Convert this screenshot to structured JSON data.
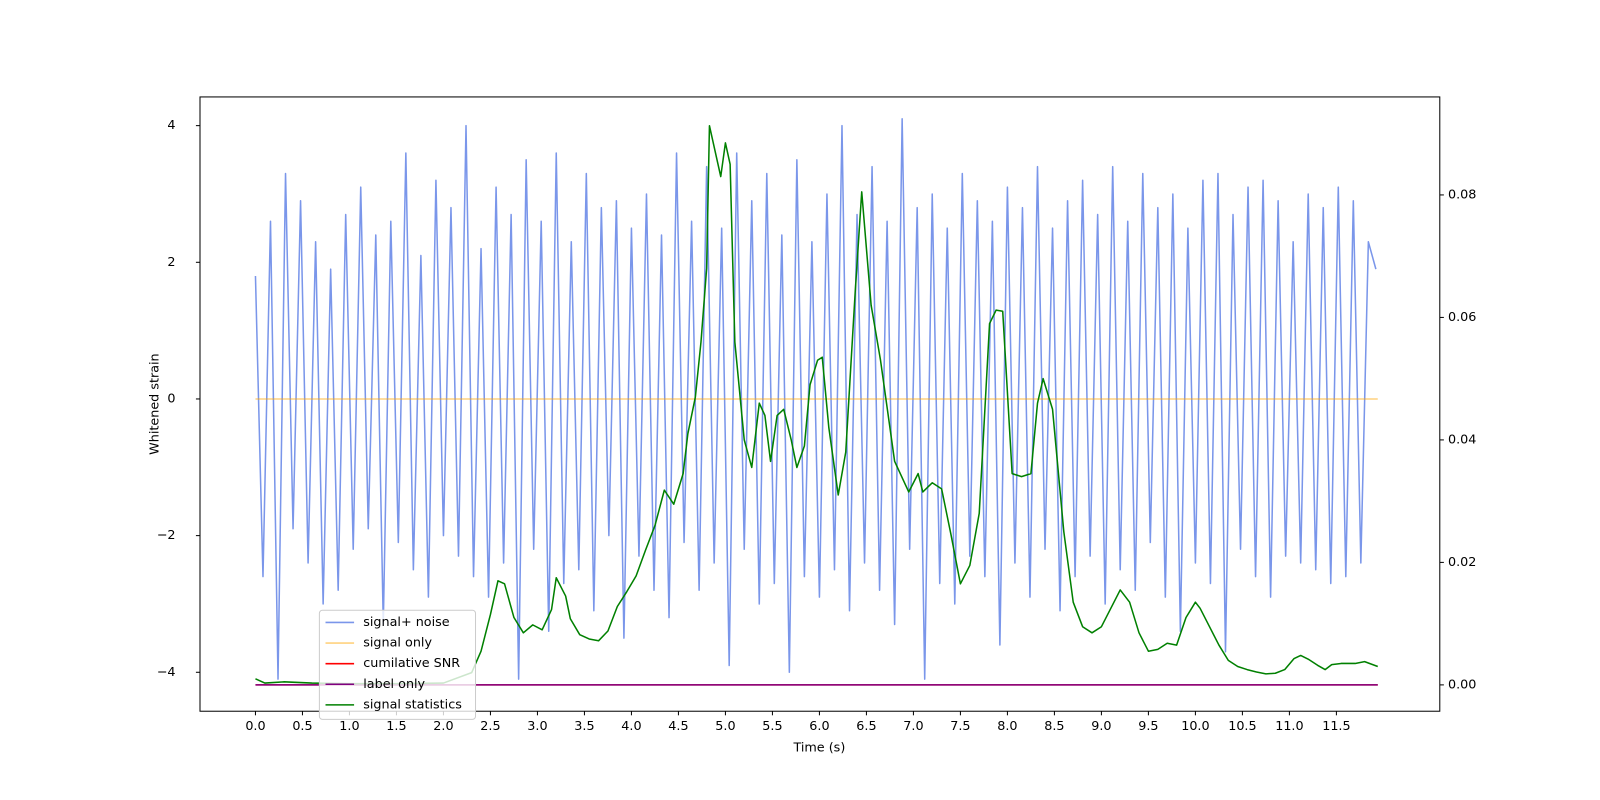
{
  "chart_data": {
    "type": "line",
    "xlabel": "Time (s)",
    "ylabel": "Whitened strain",
    "xlim": [
      -0.59,
      12.6
    ],
    "ylim": [
      -4.57,
      4.42
    ],
    "y2lim": [
      -0.0043,
      0.096
    ],
    "xticks": [
      {
        "value": 0,
        "label": "0.0"
      },
      {
        "value": 0.5,
        "label": "0.5"
      },
      {
        "value": 1,
        "label": "1.0"
      },
      {
        "value": 1.5,
        "label": "1.5"
      },
      {
        "value": 2,
        "label": "2.0"
      },
      {
        "value": 2.5,
        "label": "2.5"
      },
      {
        "value": 3,
        "label": "3.0"
      },
      {
        "value": 3.5,
        "label": "3.5"
      },
      {
        "value": 4,
        "label": "4.0"
      },
      {
        "value": 4.5,
        "label": "4.5"
      },
      {
        "value": 5,
        "label": "5.0"
      },
      {
        "value": 5.5,
        "label": "5.5"
      },
      {
        "value": 6,
        "label": "6.0"
      },
      {
        "value": 6.5,
        "label": "6.5"
      },
      {
        "value": 7,
        "label": "7.0"
      },
      {
        "value": 7.5,
        "label": "7.5"
      },
      {
        "value": 8,
        "label": "8.0"
      },
      {
        "value": 8.5,
        "label": "8.5"
      },
      {
        "value": 9,
        "label": "9.0"
      },
      {
        "value": 9.5,
        "label": "9.5"
      },
      {
        "value": 10,
        "label": "10.0"
      },
      {
        "value": 10.5,
        "label": "10.5"
      },
      {
        "value": 11,
        "label": "11.0"
      },
      {
        "value": 11.5,
        "label": "11.5"
      }
    ],
    "yticks": [
      {
        "value": -4,
        "label": "−4"
      },
      {
        "value": -2,
        "label": "−2"
      },
      0,
      2,
      4
    ],
    "y2ticks": [
      {
        "value": 0,
        "label": "0.00"
      },
      {
        "value": 0.02,
        "label": "0.02"
      },
      {
        "value": 0.04,
        "label": "0.04"
      },
      {
        "value": 0.06,
        "label": "0.06"
      },
      {
        "value": 0.08,
        "label": "0.08"
      }
    ],
    "legend": "lower left",
    "series": [
      {
        "name": "signal+ noise",
        "color": "#4169e1",
        "alpha": 0.7,
        "axis": "y",
        "x": [
          0,
          0.08,
          0.16,
          0.24,
          0.32,
          0.4,
          0.48,
          0.56,
          0.64,
          0.72,
          0.8,
          0.88,
          0.96,
          1.04,
          1.12,
          1.2,
          1.28,
          1.36,
          1.44,
          1.52,
          1.6,
          1.68,
          1.76,
          1.84,
          1.92,
          2,
          2.08,
          2.16,
          2.24,
          2.32,
          2.4,
          2.48,
          2.56,
          2.64,
          2.72,
          2.8,
          2.88,
          2.96,
          3.04,
          3.12,
          3.2,
          3.28,
          3.36,
          3.44,
          3.52,
          3.6,
          3.68,
          3.76,
          3.84,
          3.92,
          4,
          4.08,
          4.16,
          4.24,
          4.32,
          4.4,
          4.48,
          4.56,
          4.64,
          4.72,
          4.8,
          4.88,
          4.96,
          5.04,
          5.12,
          5.2,
          5.28,
          5.36,
          5.44,
          5.52,
          5.6,
          5.68,
          5.76,
          5.84,
          5.92,
          6,
          6.08,
          6.16,
          6.24,
          6.32,
          6.4,
          6.48,
          6.56,
          6.64,
          6.72,
          6.8,
          6.88,
          6.96,
          7.04,
          7.12,
          7.2,
          7.28,
          7.36,
          7.44,
          7.52,
          7.6,
          7.68,
          7.76,
          7.84,
          7.92,
          8,
          8.08,
          8.16,
          8.24,
          8.32,
          8.4,
          8.48,
          8.56,
          8.64,
          8.72,
          8.8,
          8.88,
          8.96,
          9.04,
          9.12,
          9.2,
          9.28,
          9.36,
          9.44,
          9.52,
          9.6,
          9.68,
          9.76,
          9.84,
          9.92,
          10,
          10.08,
          10.16,
          10.24,
          10.32,
          10.4,
          10.48,
          10.56,
          10.64,
          10.72,
          10.8,
          10.88,
          10.96,
          11.04,
          11.12,
          11.2,
          11.28,
          11.36,
          11.44,
          11.52,
          11.6,
          11.68,
          11.76,
          11.84,
          11.92
        ],
        "values": [
          1.8,
          -2.6,
          2.6,
          -4.1,
          3.3,
          -1.9,
          2.9,
          -2.4,
          2.3,
          -3.0,
          1.9,
          -2.8,
          2.7,
          -2.2,
          3.1,
          -1.9,
          2.4,
          -3.3,
          2.6,
          -2.1,
          3.6,
          -2.5,
          2.1,
          -2.9,
          3.2,
          -2.0,
          2.8,
          -2.3,
          4.0,
          -2.6,
          2.2,
          -2.9,
          3.1,
          -2.4,
          2.7,
          -4.1,
          3.5,
          -2.2,
          2.6,
          -3.4,
          3.6,
          -2.7,
          2.3,
          -2.5,
          3.3,
          -3.1,
          2.8,
          -2.0,
          2.9,
          -3.5,
          2.5,
          -2.3,
          3.0,
          -2.8,
          2.4,
          -3.2,
          3.6,
          -2.1,
          2.6,
          -2.8,
          3.4,
          -2.4,
          2.5,
          -3.9,
          3.6,
          -2.2,
          2.9,
          -3.0,
          3.3,
          -2.7,
          2.4,
          -4.0,
          3.5,
          -2.6,
          2.3,
          -2.9,
          3.0,
          -2.5,
          4.0,
          -3.1,
          2.7,
          -2.4,
          3.4,
          -2.8,
          2.6,
          -3.3,
          4.1,
          -2.2,
          2.8,
          -4.1,
          3.0,
          -2.7,
          2.5,
          -3.0,
          3.3,
          -2.3,
          2.9,
          -2.6,
          2.6,
          -3.6,
          3.1,
          -2.4,
          2.8,
          -2.9,
          3.4,
          -2.2,
          2.5,
          -3.1,
          2.9,
          -2.6,
          3.2,
          -2.3,
          2.7,
          -3.0,
          3.4,
          -2.5,
          2.6,
          -2.8,
          3.3,
          -2.1,
          2.8,
          -2.9,
          3.0,
          -3.4,
          2.5,
          -2.4,
          3.2,
          -2.7,
          3.3,
          -3.7,
          2.7,
          -2.2,
          3.1,
          -2.6,
          3.2,
          -2.9,
          2.9,
          -2.3,
          2.3,
          -2.4,
          3.0,
          -2.5,
          2.8,
          -2.7,
          3.1,
          -2.6,
          2.9,
          -2.4,
          2.3,
          1.9
        ]
      },
      {
        "name": "signal only",
        "color": "orange",
        "alpha": 0.5,
        "axis": "y",
        "x": [
          0,
          11.94
        ],
        "values": [
          0,
          0
        ]
      },
      {
        "name": "cumilative SNR",
        "color": "red",
        "alpha": 1,
        "axis": "y2",
        "x": [
          0,
          11.94
        ],
        "values": [
          0,
          0
        ]
      },
      {
        "name": "label only",
        "color": "purple",
        "alpha": 1,
        "axis": "y2",
        "x": [
          0,
          11.94
        ],
        "values": [
          0,
          0
        ]
      },
      {
        "name": "signal statistics",
        "color": "green",
        "alpha": 1,
        "axis": "y2",
        "x": [
          0,
          0.1,
          0.3,
          0.6,
          1.0,
          1.5,
          2.0,
          2.3,
          2.4,
          2.5,
          2.58,
          2.65,
          2.75,
          2.85,
          2.95,
          3.05,
          3.15,
          3.2,
          3.3,
          3.35,
          3.45,
          3.55,
          3.65,
          3.75,
          3.85,
          3.95,
          4.05,
          4.15,
          4.25,
          4.35,
          4.45,
          4.55,
          4.6,
          4.68,
          4.74,
          4.8,
          4.83,
          4.95,
          5.0,
          5.05,
          5.1,
          5.2,
          5.28,
          5.36,
          5.42,
          5.48,
          5.55,
          5.62,
          5.7,
          5.76,
          5.84,
          5.9,
          5.98,
          6.03,
          6.1,
          6.2,
          6.28,
          6.38,
          6.45,
          6.55,
          6.65,
          6.8,
          6.95,
          7.05,
          7.1,
          7.2,
          7.3,
          7.4,
          7.5,
          7.6,
          7.7,
          7.81,
          7.88,
          7.95,
          8.05,
          8.15,
          8.25,
          8.32,
          8.38,
          8.48,
          8.6,
          8.7,
          8.8,
          8.9,
          9.0,
          9.1,
          9.2,
          9.3,
          9.4,
          9.5,
          9.6,
          9.7,
          9.8,
          9.9,
          10.0,
          10.05,
          10.15,
          10.25,
          10.35,
          10.45,
          10.55,
          10.65,
          10.75,
          10.85,
          10.95,
          11.05,
          11.12,
          11.2,
          11.3,
          11.38,
          11.45,
          11.55,
          11.7,
          11.8,
          11.94
        ],
        "values": [
          0.001,
          0.0003,
          0.0005,
          0.0003,
          0.0002,
          0.0002,
          0.0003,
          0.002,
          0.0055,
          0.0115,
          0.017,
          0.0165,
          0.011,
          0.0085,
          0.0098,
          0.009,
          0.0123,
          0.0175,
          0.0145,
          0.0108,
          0.0082,
          0.0075,
          0.0072,
          0.0088,
          0.0128,
          0.0152,
          0.0178,
          0.022,
          0.026,
          0.0318,
          0.0295,
          0.0345,
          0.041,
          0.047,
          0.056,
          0.068,
          0.0913,
          0.083,
          0.0885,
          0.085,
          0.056,
          0.04,
          0.0355,
          0.046,
          0.044,
          0.0365,
          0.044,
          0.045,
          0.04,
          0.0355,
          0.039,
          0.049,
          0.053,
          0.0535,
          0.042,
          0.031,
          0.038,
          0.064,
          0.0805,
          0.062,
          0.053,
          0.0365,
          0.0315,
          0.0345,
          0.0315,
          0.033,
          0.032,
          0.0245,
          0.0165,
          0.0195,
          0.028,
          0.059,
          0.0612,
          0.061,
          0.0345,
          0.034,
          0.0345,
          0.046,
          0.05,
          0.045,
          0.025,
          0.0135,
          0.0095,
          0.0085,
          0.0095,
          0.0125,
          0.0155,
          0.0135,
          0.0085,
          0.0055,
          0.0058,
          0.0068,
          0.0065,
          0.011,
          0.0135,
          0.0125,
          0.0095,
          0.0065,
          0.004,
          0.003,
          0.0025,
          0.0021,
          0.0018,
          0.0019,
          0.0025,
          0.0043,
          0.0048,
          0.0042,
          0.0032,
          0.0025,
          0.0033,
          0.0035,
          0.0035,
          0.0038,
          0.003
        ]
      }
    ]
  }
}
